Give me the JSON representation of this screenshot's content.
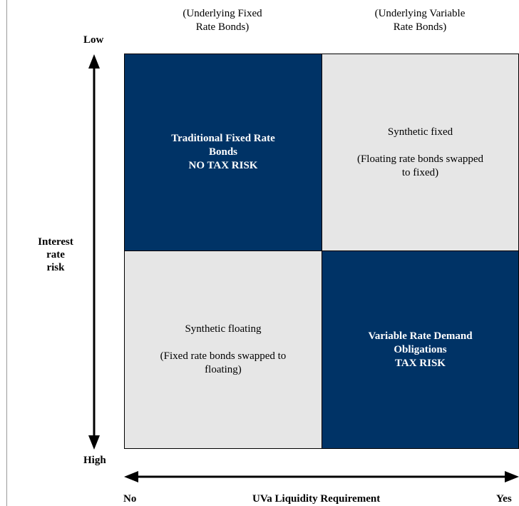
{
  "column_headers": {
    "left": [
      "(Underlying Fixed",
      "Rate Bonds)"
    ],
    "right": [
      "(Underlying Variable",
      "Rate Bonds)"
    ]
  },
  "y_axis": {
    "top_label": "Low",
    "bottom_label": "High",
    "title": [
      "Interest",
      "rate",
      "risk"
    ]
  },
  "x_axis": {
    "left_label": "No",
    "right_label": "Yes",
    "title": "UVa Liquidity Requirement"
  },
  "quadrants": {
    "top_left": {
      "lines": [
        "Traditional Fixed Rate",
        "Bonds",
        "NO TAX RISK"
      ],
      "fill": "#003366"
    },
    "top_right": {
      "line1": "Synthetic fixed",
      "line2": [
        "(Floating rate bonds swapped",
        "to fixed)"
      ],
      "fill": "#e6e6e6"
    },
    "bottom_left": {
      "line1": "Synthetic floating",
      "line2": [
        "(Fixed rate bonds swapped to",
        "floating)"
      ],
      "fill": "#e6e6e6"
    },
    "bottom_right": {
      "lines": [
        "Variable Rate Demand",
        "Obligations",
        "TAX RISK"
      ],
      "fill": "#003366"
    }
  }
}
